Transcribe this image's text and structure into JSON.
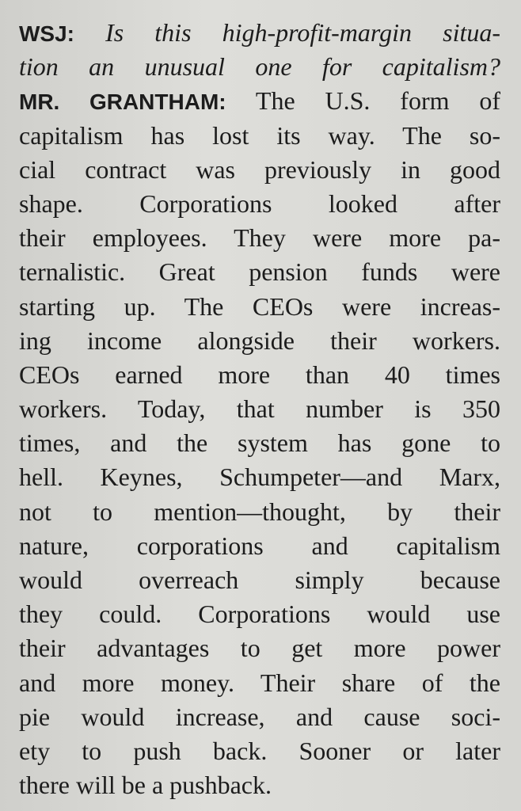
{
  "question": {
    "speaker": "WSJ:",
    "lines": [
      "Is this high-profit-margin situa-",
      "tion an unusual one for capitalism?"
    ]
  },
  "answer": {
    "speaker": "MR. GRANTHAM:",
    "lines": [
      "The U.S. form of",
      "capitalism has lost its way. The so-",
      "cial contract was previously in good",
      "shape. Corporations looked after",
      "their employees. They were more pa-",
      "ternalistic. Great pension funds were",
      "starting up. The CEOs were increas-",
      "ing income alongside their workers.",
      "CEOs earned more than 40 times",
      "workers. Today, that number is 350",
      "times, and the system has gone to",
      "hell. Keynes, Schumpeter—and Marx,",
      "not to mention—thought, by their",
      "nature, corporations and capitalism",
      "would overreach simply because",
      "they could. Corporations would use",
      "their advantages to get more power",
      "and more money. Their share of the",
      "pie would increase, and cause soci-",
      "ety to push back. Sooner or later",
      "there will be a pushback."
    ]
  }
}
